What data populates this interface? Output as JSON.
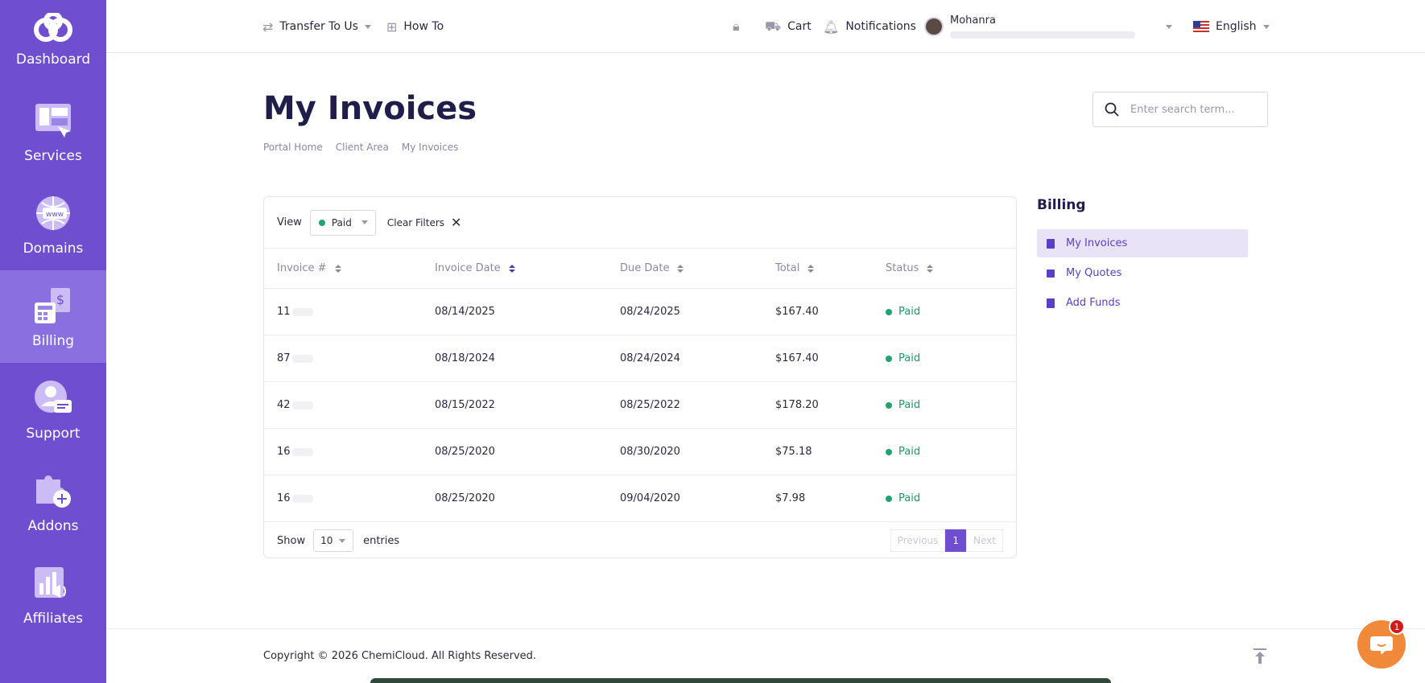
{
  "sidebar": {
    "logo_label": "Dashboard",
    "items": [
      {
        "label": "Services",
        "icon": "services-icon"
      },
      {
        "label": "Domains",
        "icon": "domains-icon"
      },
      {
        "label": "Billing",
        "icon": "billing-icon"
      },
      {
        "label": "Support",
        "icon": "support-icon"
      },
      {
        "label": "Addons",
        "icon": "addons-icon"
      },
      {
        "label": "Affiliates",
        "icon": "affiliates-icon"
      }
    ],
    "active": "Billing"
  },
  "topbar": {
    "transfer": "Transfer To Us",
    "howto": "How To",
    "cart": "Cart",
    "notifications": "Notifications",
    "user": "Mohanra",
    "language": "English"
  },
  "page": {
    "title": "My Invoices",
    "breadcrumb": [
      "Portal Home",
      "Client Area",
      "My Invoices"
    ],
    "search_placeholder": "Enter search term..."
  },
  "filters": {
    "view_label": "View",
    "view_value": "Paid",
    "clear_label": "Clear Filters"
  },
  "table": {
    "columns": [
      "Invoice #",
      "Invoice Date",
      "Due Date",
      "Total",
      "Status"
    ],
    "rows": [
      {
        "invoice": "11",
        "invoice_date": "08/14/2025",
        "due_date": "08/24/2025",
        "total": "$167.40",
        "status": "Paid"
      },
      {
        "invoice": "87",
        "invoice_date": "08/18/2024",
        "due_date": "08/24/2024",
        "total": "$167.40",
        "status": "Paid"
      },
      {
        "invoice": "42",
        "invoice_date": "08/15/2022",
        "due_date": "08/25/2022",
        "total": "$178.20",
        "status": "Paid"
      },
      {
        "invoice": "16",
        "invoice_date": "08/25/2020",
        "due_date": "08/30/2020",
        "total": "$75.18",
        "status": "Paid"
      },
      {
        "invoice": "16",
        "invoice_date": "08/25/2020",
        "due_date": "09/04/2020",
        "total": "$7.98",
        "status": "Paid"
      }
    ],
    "show_label": "Show",
    "entries_value": "10",
    "entries_label": "entries",
    "pager": {
      "previous": "Previous",
      "current": "1",
      "next": "Next"
    }
  },
  "billing_panel": {
    "title": "Billing",
    "items": [
      {
        "label": "My Invoices",
        "active": true
      },
      {
        "label": "My Quotes",
        "active": false
      },
      {
        "label": "Add Funds",
        "active": false
      }
    ]
  },
  "footer": {
    "copyright": "Copyright © 2026 ChemiCloud. All Rights Reserved."
  },
  "chat": {
    "badge": "1"
  },
  "colors": {
    "accent": "#6f4fcf",
    "status_paid": "#1e9a68",
    "chat": "#f08a3a"
  }
}
